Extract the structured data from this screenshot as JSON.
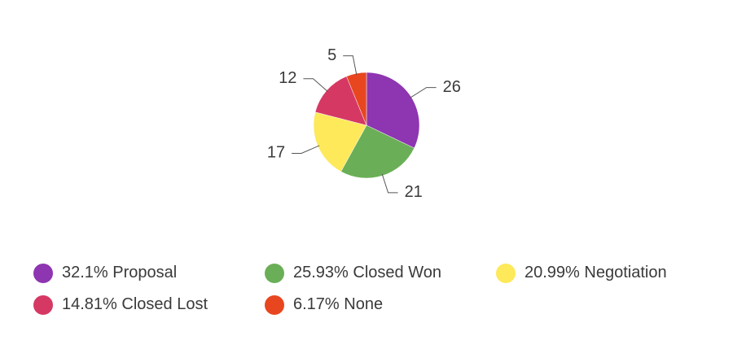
{
  "chart_data": {
    "type": "pie",
    "categories": [
      "Proposal",
      "Closed Won",
      "Negotiation",
      "Closed Lost",
      "None"
    ],
    "values": [
      26,
      21,
      17,
      12,
      5
    ],
    "percentages": [
      32.1,
      25.93,
      20.99,
      14.81,
      6.17
    ],
    "percent_labels": [
      "32.1%",
      "25.93%",
      "20.99%",
      "14.81%",
      "6.17%"
    ],
    "colors": [
      "#8e35b1",
      "#6aaf57",
      "#fde95a",
      "#d63864",
      "#e8461f"
    ],
    "legend": "bottom"
  }
}
